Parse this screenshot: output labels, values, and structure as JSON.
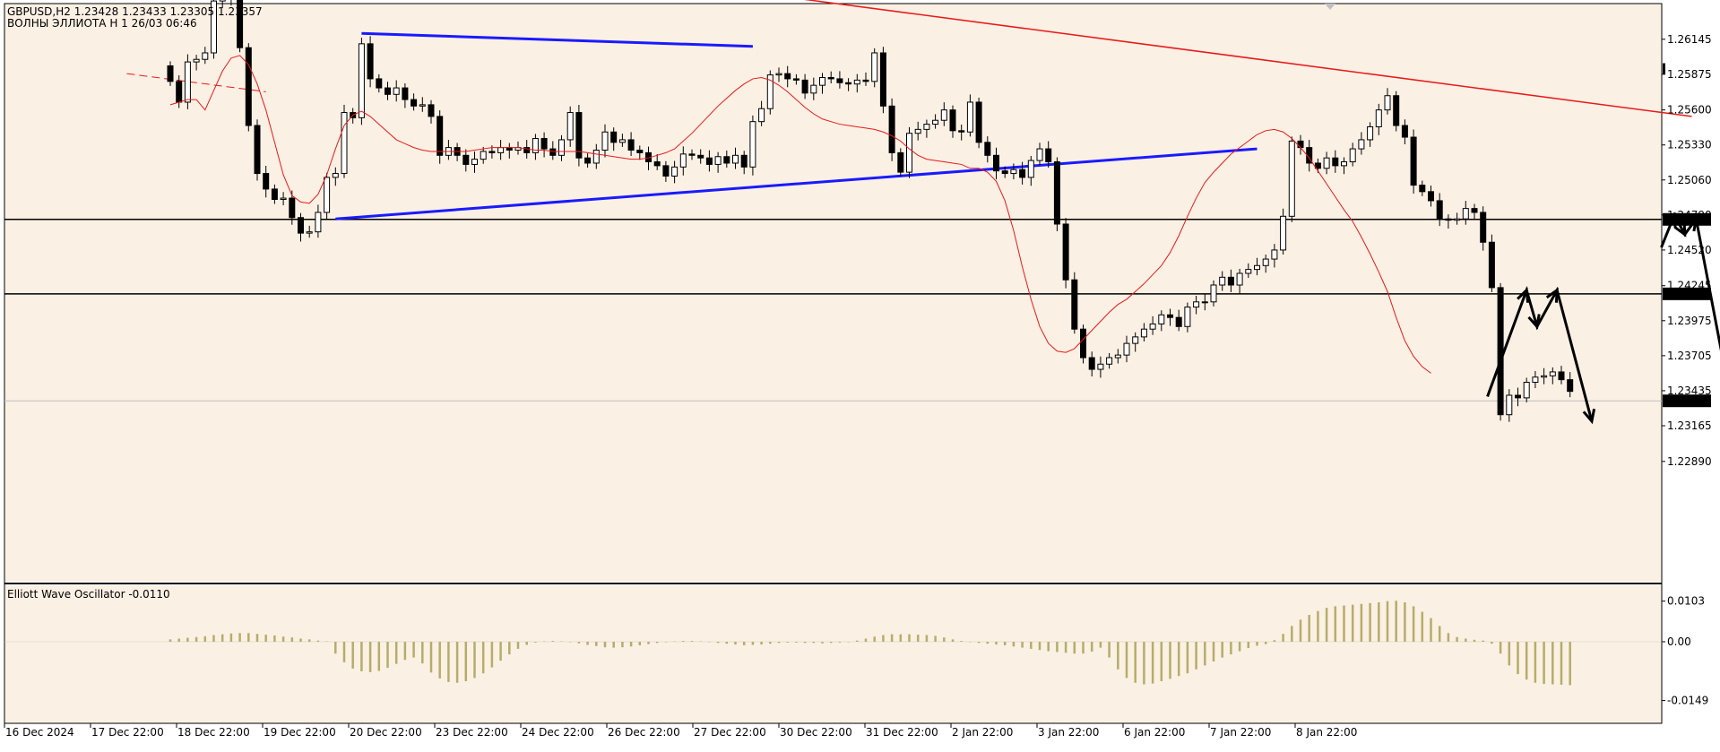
{
  "header": {
    "symbol_line": "GBPUSD,H2  1.23428 1.23433 1.23305 1.23357",
    "template_line": "ВОЛНЫ ЭЛЛИОТА H 1 26/03 06:46"
  },
  "oscillator": {
    "title": "Elliott Wave Oscillator -0.0110",
    "axis": [
      "0.0103",
      "0.00",
      "-0.0149"
    ]
  },
  "colors": {
    "background": "#fbf0e4",
    "candles": "#000000",
    "moving_average": "#e81a1a",
    "channel_lines": "#1a1aff",
    "resistance_line": "#e81a1a",
    "histogram": "#b5ad69"
  },
  "chart_data": {
    "type": "candlestick",
    "symbol": "GBPUSD",
    "timeframe": "H2",
    "price_ticks": [
      1.26145,
      1.25875,
      1.256,
      1.2533,
      1.2506,
      1.2479,
      1.2452,
      1.24245,
      1.23975,
      1.23705,
      1.23435,
      1.23165,
      1.2289
    ],
    "price_tick_labels": [
      "1.26145",
      "1.25875",
      "1.25600",
      "1.25330",
      "1.25060",
      "1.24790",
      "1.24520",
      "1.24245",
      "1.23975",
      "1.23705",
      "1.23435",
      "1.23165",
      "1.22890"
    ],
    "ylim": [
      1.2278,
      1.2642
    ],
    "current_price": "1.23357",
    "horizontal_levels": [
      "1.24756",
      "1.24182"
    ],
    "date_labels": [
      "16 Dec 2024",
      "17 Dec 22:00",
      "18 Dec 22:00",
      "19 Dec 22:00",
      "20 Dec 22:00",
      "23 Dec 22:00",
      "24 Dec 22:00",
      "26 Dec 22:00",
      "27 Dec 22:00",
      "30 Dec 22:00",
      "31 Dec 22:00",
      "2 Jan 22:00",
      "3 Jan 22:00",
      "6 Jan 22:00",
      "7 Jan 22:00",
      "8 Jan 22:00"
    ],
    "closes": [
      1.2582,
      1.2566,
      1.2597,
      1.2599,
      1.2604,
      1.2644,
      1.2647,
      1.2651,
      1.2608,
      1.2548,
      1.2511,
      1.2499,
      1.2491,
      1.2492,
      1.2477,
      1.2465,
      1.2466,
      1.2481,
      1.2508,
      1.2511,
      1.2558,
      1.2554,
      1.2611,
      1.2584,
      1.2577,
      1.2572,
      1.2577,
      1.2568,
      1.2563,
      1.2564,
      1.2555,
      1.2525,
      1.2531,
      1.2525,
      1.2518,
      1.2522,
      1.2528,
      1.2527,
      1.2531,
      1.2529,
      1.2531,
      1.2527,
      1.2538,
      1.253,
      1.2525,
      1.2537,
      1.2558,
      1.2523,
      1.2519,
      1.2529,
      1.2543,
      1.2535,
      1.2537,
      1.2529,
      1.2527,
      1.252,
      1.2517,
      1.2509,
      1.2516,
      1.2526,
      1.2525,
      1.2523,
      1.2518,
      1.2524,
      1.2519,
      1.2525,
      1.2516,
      1.2551,
      1.2561,
      1.2587,
      1.2588,
      1.2584,
      1.2583,
      1.2573,
      1.2579,
      1.2585,
      1.2584,
      1.2581,
      1.258,
      1.2583,
      1.2582,
      1.2604,
      1.2563,
      1.2527,
      1.2512,
      1.2542,
      1.2545,
      1.2549,
      1.2552,
      1.256,
      1.2544,
      1.2543,
      1.2566,
      1.2535,
      1.2525,
      1.2513,
      1.2511,
      1.2514,
      1.2508,
      1.2521,
      1.253,
      1.252,
      1.2472,
      1.2429,
      1.2391,
      1.2369,
      1.236,
      1.2364,
      1.2369,
      1.2371,
      1.238,
      1.2385,
      1.2391,
      1.2395,
      1.2402,
      1.24,
      1.2393,
      1.2408,
      1.2412,
      1.2412,
      1.2425,
      1.2431,
      1.2425,
      1.2434,
      1.2437,
      1.244,
      1.2445,
      1.2452,
      1.2478,
      1.2536,
      1.2531,
      1.2519,
      1.2515,
      1.2523,
      1.2517,
      1.252,
      1.253,
      1.2537,
      1.2547,
      1.256,
      1.2571,
      1.2548,
      1.2539,
      1.2502,
      1.2497,
      1.249,
      1.2476,
      1.2475,
      1.2476,
      1.2484,
      1.2481,
      1.2458,
      1.2423,
      1.2325,
      1.234,
      1.2338,
      1.235,
      1.2354,
      1.2355,
      1.2358,
      1.2352,
      1.2343
    ],
    "moving_average": [
      1.2564,
      1.2566,
      1.2568,
      1.2568,
      1.256,
      1.2575,
      1.259,
      1.26,
      1.2602,
      1.2595,
      1.258,
      1.256,
      1.2535,
      1.251,
      1.2494,
      1.2489,
      1.2488,
      1.2495,
      1.251,
      1.253,
      1.2548,
      1.2556,
      1.2559,
      1.2555,
      1.2549,
      1.2543,
      1.2537,
      1.2534,
      1.2531,
      1.2529,
      1.2528,
      1.2528,
      1.2528,
      1.2528,
      1.2528,
      1.2529,
      1.253,
      1.2531,
      1.2531,
      1.2531,
      1.2531,
      1.253,
      1.2529,
      1.2529,
      1.2528,
      1.2528,
      1.2528,
      1.2528,
      1.2527,
      1.2526,
      1.2525,
      1.2524,
      1.2523,
      1.2522,
      1.2522,
      1.2523,
      1.2525,
      1.2527,
      1.253,
      1.2536,
      1.2542,
      1.2549,
      1.2556,
      1.2563,
      1.2569,
      1.2575,
      1.258,
      1.2584,
      1.2585,
      1.2583,
      1.2579,
      1.2574,
      1.2568,
      1.2562,
      1.2557,
      1.2553,
      1.2551,
      1.2549,
      1.2548,
      1.2547,
      1.2546,
      1.2545,
      1.2543,
      1.254,
      1.2536,
      1.253,
      1.2525,
      1.2522,
      1.2521,
      1.252,
      1.2519,
      1.2518,
      1.2515,
      1.2515,
      1.2512,
      1.2505,
      1.249,
      1.2467,
      1.2439,
      1.2414,
      1.2393,
      1.238,
      1.2374,
      1.2373,
      1.2376,
      1.2383,
      1.239,
      1.2397,
      1.2404,
      1.241,
      1.2414,
      1.242,
      1.2426,
      1.2433,
      1.244,
      1.245,
      1.2463,
      1.2478,
      1.2492,
      1.2504,
      1.2512,
      1.2519,
      1.2526,
      1.2531,
      1.2536,
      1.2541,
      1.2544,
      1.2545,
      1.2543,
      1.2538,
      1.2531,
      1.2523,
      1.2513,
      1.2503,
      1.2493,
      1.2483,
      1.2474,
      1.2462,
      1.2449,
      1.2435,
      1.242,
      1.24,
      1.2382,
      1.237,
      1.2362,
      1.2357
    ],
    "oscillator_values": [
      0.0006,
      0.0008,
      0.001,
      0.0012,
      0.0014,
      0.0017,
      0.0019,
      0.0021,
      0.0022,
      0.0022,
      0.002,
      0.0018,
      0.0016,
      0.0013,
      0.0011,
      0.0008,
      0.0006,
      0.0003,
      0.0001,
      -0.003,
      -0.0052,
      -0.0068,
      -0.0075,
      -0.0077,
      -0.0074,
      -0.0066,
      -0.0056,
      -0.0046,
      -0.004,
      -0.0055,
      -0.0078,
      -0.0093,
      -0.0102,
      -0.0104,
      -0.01,
      -0.0092,
      -0.008,
      -0.0065,
      -0.0048,
      -0.0032,
      -0.0018,
      -0.0008,
      -0.0002,
      0.0001,
      0.0002,
      0.0001,
      -0.0001,
      -0.0004,
      -0.0008,
      -0.0011,
      -0.0014,
      -0.0015,
      -0.0014,
      -0.0012,
      -0.0009,
      -0.0006,
      -0.0003,
      -0.0001,
      0.0001,
      0.0002,
      0.0002,
      0.0001,
      -0.0001,
      -0.0003,
      -0.0005,
      -0.0007,
      -0.0009,
      -0.0008,
      -0.0007,
      -0.0005,
      -0.0003,
      -0.0002,
      -0.0002,
      -0.0003,
      -0.0003,
      -0.0004,
      -0.0003,
      -0.0002,
      -0.0001,
      0.0003,
      0.0008,
      0.0013,
      0.0017,
      0.0019,
      0.0019,
      0.0019,
      0.0018,
      0.0017,
      0.0015,
      0.0011,
      0.0006,
      0.0002,
      -0.0001,
      -0.0003,
      -0.0005,
      -0.0007,
      -0.0009,
      -0.0012,
      -0.0015,
      -0.0018,
      -0.0021,
      -0.0024,
      -0.0026,
      -0.0028,
      -0.003,
      -0.003,
      -0.0025,
      -0.0015,
      -0.004,
      -0.007,
      -0.0092,
      -0.0104,
      -0.0108,
      -0.0106,
      -0.01,
      -0.0094,
      -0.0087,
      -0.008,
      -0.007,
      -0.006,
      -0.005,
      -0.004,
      -0.0032,
      -0.0024,
      -0.0016,
      -0.001,
      -0.0006,
      0.0004,
      0.002,
      0.004,
      0.0056,
      0.0068,
      0.0078,
      0.0086,
      0.009,
      0.0092,
      0.0094,
      0.0096,
      0.0098,
      0.01,
      0.0103,
      0.0104,
      0.01,
      0.009,
      0.0076,
      0.006,
      0.004,
      0.0022,
      0.0012,
      0.0008,
      0.0005,
      0.0003,
      -0.0005,
      -0.003,
      -0.006,
      -0.0082,
      -0.0096,
      -0.0104,
      -0.0107,
      -0.0108,
      -0.0109,
      -0.011
    ],
    "drawn_lines": [
      {
        "name": "upper-channel-line",
        "color": "#1a1aff",
        "from": [
          22,
          1.2619
        ],
        "to": [
          67,
          1.2609
        ]
      },
      {
        "name": "lower-channel-line",
        "color": "#1a1aff",
        "from": [
          19,
          1.2476
        ],
        "to": [
          125,
          1.253
        ]
      },
      {
        "name": "resistance-trendline",
        "color": "#e81a1a",
        "from": [
          54,
          1.2662
        ],
        "to": [
          175,
          1.2555
        ]
      },
      {
        "name": "old-dashed-line",
        "color": "#e81a1a",
        "dashed": true,
        "from": [
          -5,
          1.2588
        ],
        "to": [
          11,
          1.2574
        ]
      }
    ],
    "forecast_paths": [
      [
        [
          151.5,
          1.2339
        ],
        [
          156,
          1.2421
        ],
        [
          157.2,
          1.2393
        ],
        [
          159.5,
          1.2421
        ],
        [
          163.5,
          1.232
        ]
      ],
      [
        [
          171.5,
          1.2454
        ],
        [
          173,
          1.2479
        ],
        [
          174.2,
          1.2464
        ],
        [
          175.5,
          1.2476
        ],
        [
          180,
          1.2318
        ]
      ]
    ]
  }
}
